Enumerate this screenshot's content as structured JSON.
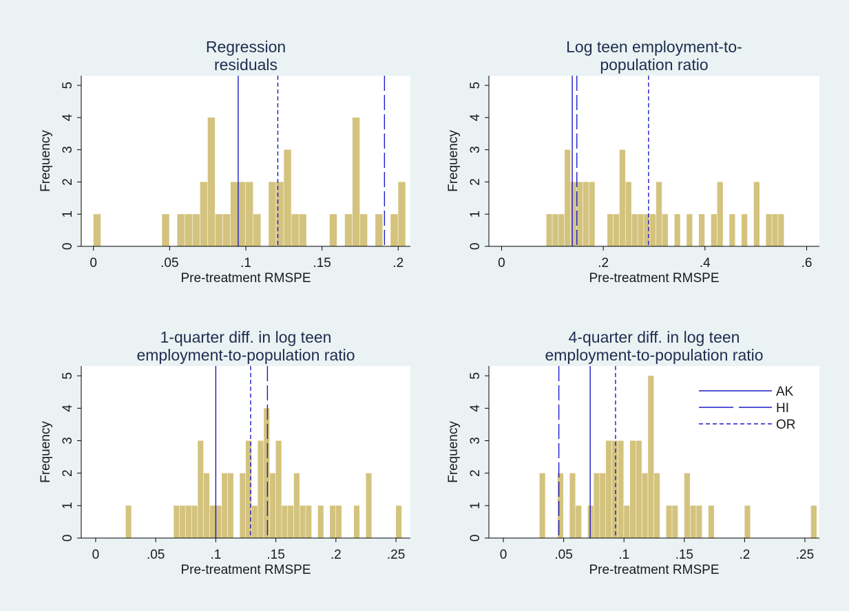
{
  "colors": {
    "background": "#eaf2f3",
    "plot_background": "#ffffff",
    "bar_fill": "#d4c37e",
    "reference_line": "#1a1acc",
    "text": "#1a1a1a",
    "title_text": "#1e2d50"
  },
  "chart_data": [
    {
      "type": "bar",
      "title": [
        "Regression",
        "residuals"
      ],
      "xlabel": "Pre-treatment RMSPE",
      "ylabel": "Frequency",
      "xlim": [
        -0.008,
        0.208
      ],
      "ylim": [
        0,
        5.3
      ],
      "xticks": [
        0,
        0.05,
        0.1,
        0.15,
        0.2
      ],
      "xtick_labels": [
        "0",
        ".05",
        ".1",
        ".15",
        ".2"
      ],
      "yticks": [
        0,
        1,
        2,
        3,
        4,
        5
      ],
      "ytick_labels": [
        "0",
        "1",
        "2",
        "3",
        "4",
        "5"
      ],
      "bin_width": 0.005,
      "bins": [
        {
          "x": 0.0025,
          "count": 1
        },
        {
          "x": 0.0475,
          "count": 1
        },
        {
          "x": 0.0575,
          "count": 1
        },
        {
          "x": 0.0625,
          "count": 1
        },
        {
          "x": 0.0675,
          "count": 1
        },
        {
          "x": 0.0725,
          "count": 2
        },
        {
          "x": 0.0775,
          "count": 4
        },
        {
          "x": 0.0825,
          "count": 1
        },
        {
          "x": 0.0875,
          "count": 1
        },
        {
          "x": 0.0925,
          "count": 2
        },
        {
          "x": 0.0975,
          "count": 2
        },
        {
          "x": 0.1025,
          "count": 2
        },
        {
          "x": 0.1075,
          "count": 1
        },
        {
          "x": 0.1175,
          "count": 2
        },
        {
          "x": 0.1225,
          "count": 2
        },
        {
          "x": 0.1275,
          "count": 3
        },
        {
          "x": 0.1325,
          "count": 1
        },
        {
          "x": 0.1375,
          "count": 1
        },
        {
          "x": 0.1575,
          "count": 1
        },
        {
          "x": 0.1675,
          "count": 1
        },
        {
          "x": 0.1725,
          "count": 4
        },
        {
          "x": 0.1775,
          "count": 1
        },
        {
          "x": 0.1875,
          "count": 1
        },
        {
          "x": 0.1975,
          "count": 1
        },
        {
          "x": 0.2025,
          "count": 2
        }
      ],
      "reference_lines": [
        {
          "series": "AK",
          "x": 0.095
        },
        {
          "series": "OR",
          "x": 0.121
        },
        {
          "series": "HI",
          "x": 0.191
        }
      ]
    },
    {
      "type": "bar",
      "title": [
        "Log teen employment-to-",
        "population ratio"
      ],
      "xlabel": "Pre-treatment RMSPE",
      "ylabel": "Frequency",
      "xlim": [
        -0.025,
        0.625
      ],
      "ylim": [
        0,
        5.3
      ],
      "xticks": [
        0,
        0.2,
        0.4,
        0.6
      ],
      "xtick_labels": [
        "0",
        ".2",
        ".4",
        ".6"
      ],
      "yticks": [
        0,
        1,
        2,
        3,
        4,
        5
      ],
      "ytick_labels": [
        "0",
        "1",
        "2",
        "3",
        "4",
        "5"
      ],
      "bin_width": 0.012,
      "bins": [
        {
          "x": 0.094,
          "count": 1
        },
        {
          "x": 0.106,
          "count": 1
        },
        {
          "x": 0.118,
          "count": 1
        },
        {
          "x": 0.13,
          "count": 3
        },
        {
          "x": 0.142,
          "count": 2
        },
        {
          "x": 0.154,
          "count": 2
        },
        {
          "x": 0.166,
          "count": 2
        },
        {
          "x": 0.178,
          "count": 2
        },
        {
          "x": 0.214,
          "count": 1
        },
        {
          "x": 0.226,
          "count": 1
        },
        {
          "x": 0.238,
          "count": 3
        },
        {
          "x": 0.25,
          "count": 2
        },
        {
          "x": 0.262,
          "count": 1
        },
        {
          "x": 0.274,
          "count": 1
        },
        {
          "x": 0.286,
          "count": 1
        },
        {
          "x": 0.298,
          "count": 1
        },
        {
          "x": 0.31,
          "count": 2
        },
        {
          "x": 0.322,
          "count": 1
        },
        {
          "x": 0.346,
          "count": 1
        },
        {
          "x": 0.37,
          "count": 1
        },
        {
          "x": 0.394,
          "count": 1
        },
        {
          "x": 0.418,
          "count": 1
        },
        {
          "x": 0.43,
          "count": 2
        },
        {
          "x": 0.454,
          "count": 1
        },
        {
          "x": 0.478,
          "count": 1
        },
        {
          "x": 0.502,
          "count": 2
        },
        {
          "x": 0.526,
          "count": 1
        },
        {
          "x": 0.538,
          "count": 1
        },
        {
          "x": 0.55,
          "count": 1
        }
      ],
      "reference_lines": [
        {
          "series": "AK",
          "x": 0.139
        },
        {
          "series": "HI",
          "x": 0.148
        },
        {
          "series": "OR",
          "x": 0.289
        }
      ]
    },
    {
      "type": "bar",
      "title": [
        "1-quarter diff. in log teen",
        "employment-to-population ratio"
      ],
      "xlabel": "Pre-treatment RMSPE",
      "ylabel": "Frequency",
      "xlim": [
        -0.012,
        0.262
      ],
      "ylim": [
        0,
        5.3
      ],
      "xticks": [
        0,
        0.05,
        0.1,
        0.15,
        0.2,
        0.25
      ],
      "xtick_labels": [
        "0",
        ".05",
        ".1",
        ".15",
        ".2",
        ".25"
      ],
      "yticks": [
        0,
        1,
        2,
        3,
        4,
        5
      ],
      "ytick_labels": [
        "0",
        "1",
        "2",
        "3",
        "4",
        "5"
      ],
      "bin_width": 0.005,
      "bins": [
        {
          "x": 0.0275,
          "count": 1
        },
        {
          "x": 0.0675,
          "count": 1
        },
        {
          "x": 0.0725,
          "count": 1
        },
        {
          "x": 0.0775,
          "count": 1
        },
        {
          "x": 0.0825,
          "count": 1
        },
        {
          "x": 0.0875,
          "count": 3
        },
        {
          "x": 0.0925,
          "count": 2
        },
        {
          "x": 0.0975,
          "count": 1
        },
        {
          "x": 0.1025,
          "count": 1
        },
        {
          "x": 0.1075,
          "count": 2
        },
        {
          "x": 0.1125,
          "count": 2
        },
        {
          "x": 0.1225,
          "count": 2
        },
        {
          "x": 0.1275,
          "count": 3
        },
        {
          "x": 0.1325,
          "count": 1
        },
        {
          "x": 0.1375,
          "count": 3
        },
        {
          "x": 0.1425,
          "count": 4
        },
        {
          "x": 0.1475,
          "count": 2
        },
        {
          "x": 0.1525,
          "count": 3
        },
        {
          "x": 0.1575,
          "count": 1
        },
        {
          "x": 0.1625,
          "count": 1
        },
        {
          "x": 0.1675,
          "count": 2
        },
        {
          "x": 0.1725,
          "count": 1
        },
        {
          "x": 0.1775,
          "count": 1
        },
        {
          "x": 0.1875,
          "count": 1
        },
        {
          "x": 0.1975,
          "count": 1
        },
        {
          "x": 0.2025,
          "count": 1
        },
        {
          "x": 0.2175,
          "count": 1
        },
        {
          "x": 0.2275,
          "count": 2
        },
        {
          "x": 0.2525,
          "count": 1
        }
      ],
      "reference_lines": [
        {
          "series": "AK",
          "x": 0.1
        },
        {
          "series": "OR",
          "x": 0.129
        },
        {
          "series": "HI",
          "x": 0.143
        }
      ]
    },
    {
      "type": "bar",
      "title": [
        "4-quarter diff. in log teen",
        "employment-to-population ratio"
      ],
      "xlabel": "Pre-treatment RMSPE",
      "ylabel": "Frequency",
      "xlim": [
        -0.012,
        0.262
      ],
      "ylim": [
        0,
        5.3
      ],
      "xticks": [
        0,
        0.05,
        0.1,
        0.15,
        0.2,
        0.25
      ],
      "xtick_labels": [
        "0",
        ".05",
        ".1",
        ".15",
        ".2",
        ".25"
      ],
      "yticks": [
        0,
        1,
        2,
        3,
        4,
        5
      ],
      "ytick_labels": [
        "0",
        "1",
        "2",
        "3",
        "4",
        "5"
      ],
      "bin_width": 0.005,
      "bins": [
        {
          "x": 0.0325,
          "count": 2
        },
        {
          "x": 0.0475,
          "count": 2
        },
        {
          "x": 0.0575,
          "count": 2
        },
        {
          "x": 0.0625,
          "count": 1
        },
        {
          "x": 0.0725,
          "count": 1
        },
        {
          "x": 0.0775,
          "count": 2
        },
        {
          "x": 0.0825,
          "count": 2
        },
        {
          "x": 0.0875,
          "count": 3
        },
        {
          "x": 0.0925,
          "count": 3
        },
        {
          "x": 0.0975,
          "count": 3
        },
        {
          "x": 0.1025,
          "count": 1
        },
        {
          "x": 0.1075,
          "count": 3
        },
        {
          "x": 0.1125,
          "count": 3
        },
        {
          "x": 0.1175,
          "count": 2
        },
        {
          "x": 0.1225,
          "count": 5
        },
        {
          "x": 0.1275,
          "count": 2
        },
        {
          "x": 0.1375,
          "count": 1
        },
        {
          "x": 0.1425,
          "count": 1
        },
        {
          "x": 0.1525,
          "count": 2
        },
        {
          "x": 0.1575,
          "count": 1
        },
        {
          "x": 0.1625,
          "count": 1
        },
        {
          "x": 0.1725,
          "count": 1
        },
        {
          "x": 0.2025,
          "count": 1
        },
        {
          "x": 0.2575,
          "count": 1
        }
      ],
      "reference_lines": [
        {
          "series": "HI",
          "x": 0.046
        },
        {
          "series": "AK",
          "x": 0.072
        },
        {
          "series": "OR",
          "x": 0.093
        }
      ],
      "legend": {
        "position": "top-right",
        "entries": [
          {
            "label": "AK",
            "style": "solid"
          },
          {
            "label": "HI",
            "style": "long-dash"
          },
          {
            "label": "OR",
            "style": "short-dash"
          }
        ]
      }
    }
  ]
}
